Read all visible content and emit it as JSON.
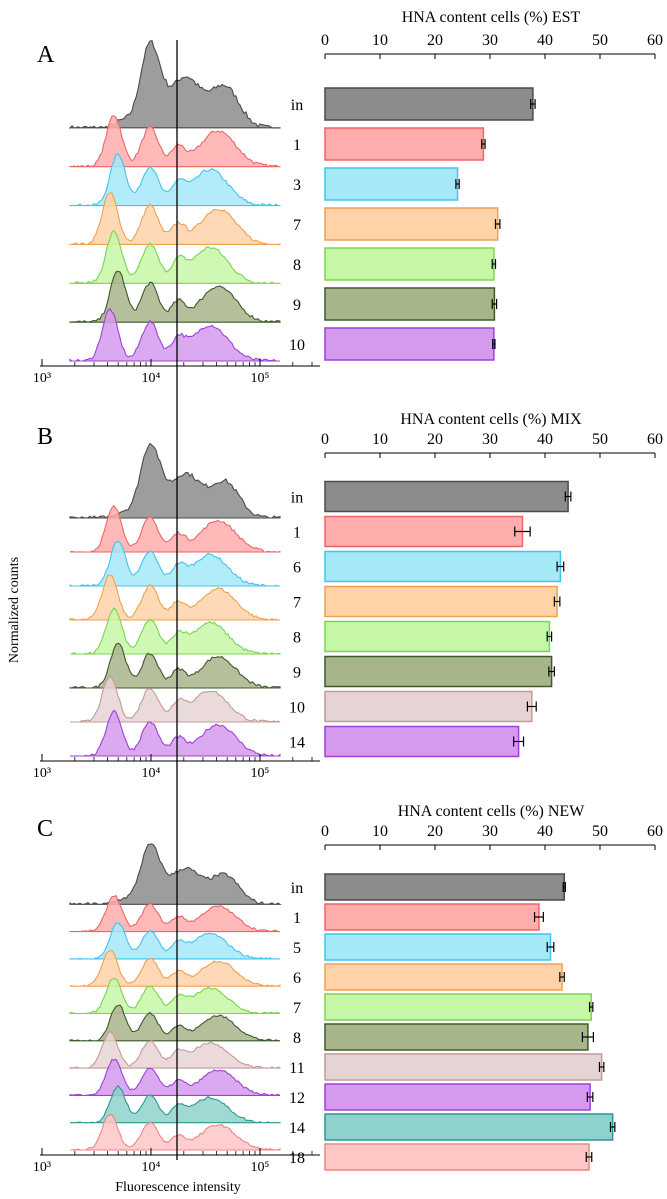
{
  "figure": {
    "ylabel": "Normalized counts",
    "xlabel": "Fluorescence intensity",
    "gate_line": true
  },
  "chart_data": [
    {
      "panel": "A",
      "type": "bar",
      "orientation": "horizontal",
      "title": "HNA content cells (%) EST",
      "xlim": [
        0,
        60
      ],
      "xticks": [
        "0",
        "10",
        "20",
        "30",
        "40",
        "50",
        "60"
      ],
      "histogram_xticks": [
        "10³",
        "10⁴",
        "10⁵"
      ],
      "categories": [
        "in",
        "1",
        "3",
        "7",
        "8",
        "9",
        "10"
      ],
      "values": [
        37.8,
        28.8,
        24.1,
        31.4,
        30.7,
        30.8,
        30.7
      ],
      "errors": [
        0.4,
        0.3,
        0.3,
        0.4,
        0.3,
        0.4,
        0.2
      ],
      "colors": [
        "#8c8c8c",
        "#ffadad",
        "#a5e8f8",
        "#ffd2a8",
        "#c6f7a7",
        "#a8b48a",
        "#d59aed"
      ],
      "edge_colors": [
        "#4a4a4a",
        "#ee6565",
        "#42c4ee",
        "#f0a050",
        "#7ad44f",
        "#3c5a2a",
        "#a040d8"
      ]
    },
    {
      "panel": "B",
      "type": "bar",
      "orientation": "horizontal",
      "title": "HNA content cells (%) MIX",
      "xlim": [
        0,
        60
      ],
      "xticks": [
        "0",
        "10",
        "20",
        "30",
        "40",
        "50",
        "60"
      ],
      "histogram_xticks": [
        "10³",
        "10⁴",
        "10⁵"
      ],
      "categories": [
        "in",
        "1",
        "6",
        "7",
        "8",
        "9",
        "10",
        "14"
      ],
      "values": [
        44.2,
        35.9,
        42.8,
        42.2,
        40.8,
        41.2,
        37.6,
        35.2
      ],
      "errors": [
        0.5,
        1.4,
        0.6,
        0.5,
        0.4,
        0.5,
        0.8,
        0.9
      ],
      "colors": [
        "#8c8c8c",
        "#ffadad",
        "#a5e8f8",
        "#ffd2a8",
        "#c6f7a7",
        "#a8b48a",
        "#e6d3d3",
        "#d59aed"
      ],
      "edge_colors": [
        "#4a4a4a",
        "#ee6565",
        "#42c4ee",
        "#f0a050",
        "#7ad44f",
        "#3c5a2a",
        "#c49a9a",
        "#a040d8"
      ]
    },
    {
      "panel": "C",
      "type": "bar",
      "orientation": "horizontal",
      "title": "HNA content cells (%) NEW",
      "xlim": [
        0,
        60
      ],
      "xticks": [
        "0",
        "10",
        "20",
        "30",
        "40",
        "50",
        "60"
      ],
      "histogram_xticks": [
        "10³",
        "10⁴",
        "10⁵"
      ],
      "categories": [
        "in",
        "1",
        "5",
        "6",
        "7",
        "8",
        "11",
        "12",
        "14",
        "18"
      ],
      "values": [
        43.5,
        38.9,
        41.0,
        43.1,
        48.4,
        47.8,
        50.3,
        48.2,
        52.3,
        48.0
      ],
      "errors": [
        0.2,
        0.8,
        0.6,
        0.4,
        0.3,
        1.0,
        0.4,
        0.5,
        0.4,
        0.5
      ],
      "colors": [
        "#8c8c8c",
        "#ffadad",
        "#a5e8f8",
        "#ffd2a8",
        "#c6f7a7",
        "#a8b48a",
        "#e6d3d3",
        "#d59aed",
        "#8fd1cc",
        "#ffc6c6"
      ],
      "edge_colors": [
        "#4a4a4a",
        "#ee6565",
        "#42c4ee",
        "#f0a050",
        "#7ad44f",
        "#3c5a2a",
        "#c49a9a",
        "#a040d8",
        "#2a9a90",
        "#ee8585"
      ]
    }
  ]
}
